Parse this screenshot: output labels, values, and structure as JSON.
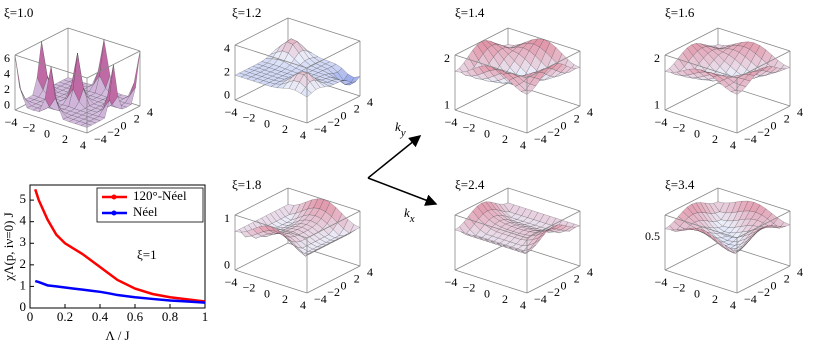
{
  "panels": [
    {
      "label": "ξ=1.0",
      "z_ticks": [
        "0",
        "2",
        "4",
        "6"
      ],
      "kx_ticks": [
        "−4",
        "−2",
        "0",
        "2",
        "4"
      ],
      "ky_ticks": [
        "−4",
        "−2",
        "0",
        "2",
        "4"
      ]
    },
    {
      "label": "ξ=1.2",
      "z_ticks": [
        "0",
        "2",
        "4"
      ],
      "kx_ticks": [
        "−4",
        "−2",
        "0",
        "2",
        "4"
      ],
      "ky_ticks": [
        "−4",
        "−2",
        "0",
        "2",
        "4"
      ]
    },
    {
      "label": "ξ=1.4",
      "z_ticks": [
        "1",
        "2"
      ],
      "kx_ticks": [
        "−4",
        "−2",
        "0",
        "2",
        "4"
      ],
      "ky_ticks": [
        "−4",
        "−2",
        "0",
        "2",
        "4"
      ]
    },
    {
      "label": "ξ=1.6",
      "z_ticks": [
        "1",
        "2"
      ],
      "kx_ticks": [
        "−4",
        "−2",
        "0",
        "2",
        "4"
      ],
      "ky_ticks": [
        "−4",
        "−2",
        "0",
        "2",
        "4"
      ]
    },
    {
      "label": "ξ=1.8",
      "z_ticks": [
        "0",
        "1"
      ],
      "kx_ticks": [
        "−4",
        "−2",
        "0",
        "2",
        "4"
      ],
      "ky_ticks": [
        "−4",
        "−2",
        "0",
        "2",
        "4"
      ]
    },
    {
      "label": "ξ=2.4",
      "z_ticks": [],
      "kx_ticks": [
        "−4",
        "−2",
        "0",
        "2",
        "4"
      ],
      "ky_ticks": [
        "−4",
        "−2",
        "0",
        "2",
        "4"
      ]
    },
    {
      "label": "ξ=3.4",
      "z_ticks": [
        "0.5"
      ],
      "kx_ticks": [
        "−4",
        "−2",
        "0",
        "2",
        "4"
      ],
      "ky_ticks": [
        "−4",
        "−2",
        "0",
        "2",
        "4"
      ]
    }
  ],
  "arrows": {
    "ky": {
      "base": "k",
      "sub": "y"
    },
    "kx": {
      "base": "k",
      "sub": "x"
    }
  },
  "chart_data": {
    "type": "line",
    "x_label": "Λ / J",
    "y_label": "χΛ(p, iν=0) J",
    "annotation": "ξ=1",
    "x": [
      0.03,
      0.05,
      0.1,
      0.15,
      0.2,
      0.25,
      0.3,
      0.35,
      0.4,
      0.45,
      0.5,
      0.6,
      0.7,
      0.8,
      0.9,
      1.0
    ],
    "series": [
      {
        "name": "120°-Néel",
        "color": "#ff0000",
        "values": [
          5.5,
          5.0,
          4.1,
          3.4,
          3.0,
          2.75,
          2.5,
          2.2,
          1.9,
          1.6,
          1.3,
          0.9,
          0.65,
          0.5,
          0.4,
          0.3
        ]
      },
      {
        "name": "Néel",
        "color": "#0000ff",
        "values": [
          1.25,
          1.2,
          1.05,
          1.0,
          0.95,
          0.9,
          0.85,
          0.8,
          0.75,
          0.68,
          0.6,
          0.5,
          0.42,
          0.35,
          0.3,
          0.25
        ]
      }
    ],
    "xlim": [
      0,
      1
    ],
    "ylim": [
      0,
      5.7
    ],
    "xticks": [
      0,
      0.2,
      0.4,
      0.6,
      0.8,
      1
    ],
    "yticks": [
      0,
      1,
      2,
      3,
      4,
      5
    ],
    "legend": "top-right"
  }
}
